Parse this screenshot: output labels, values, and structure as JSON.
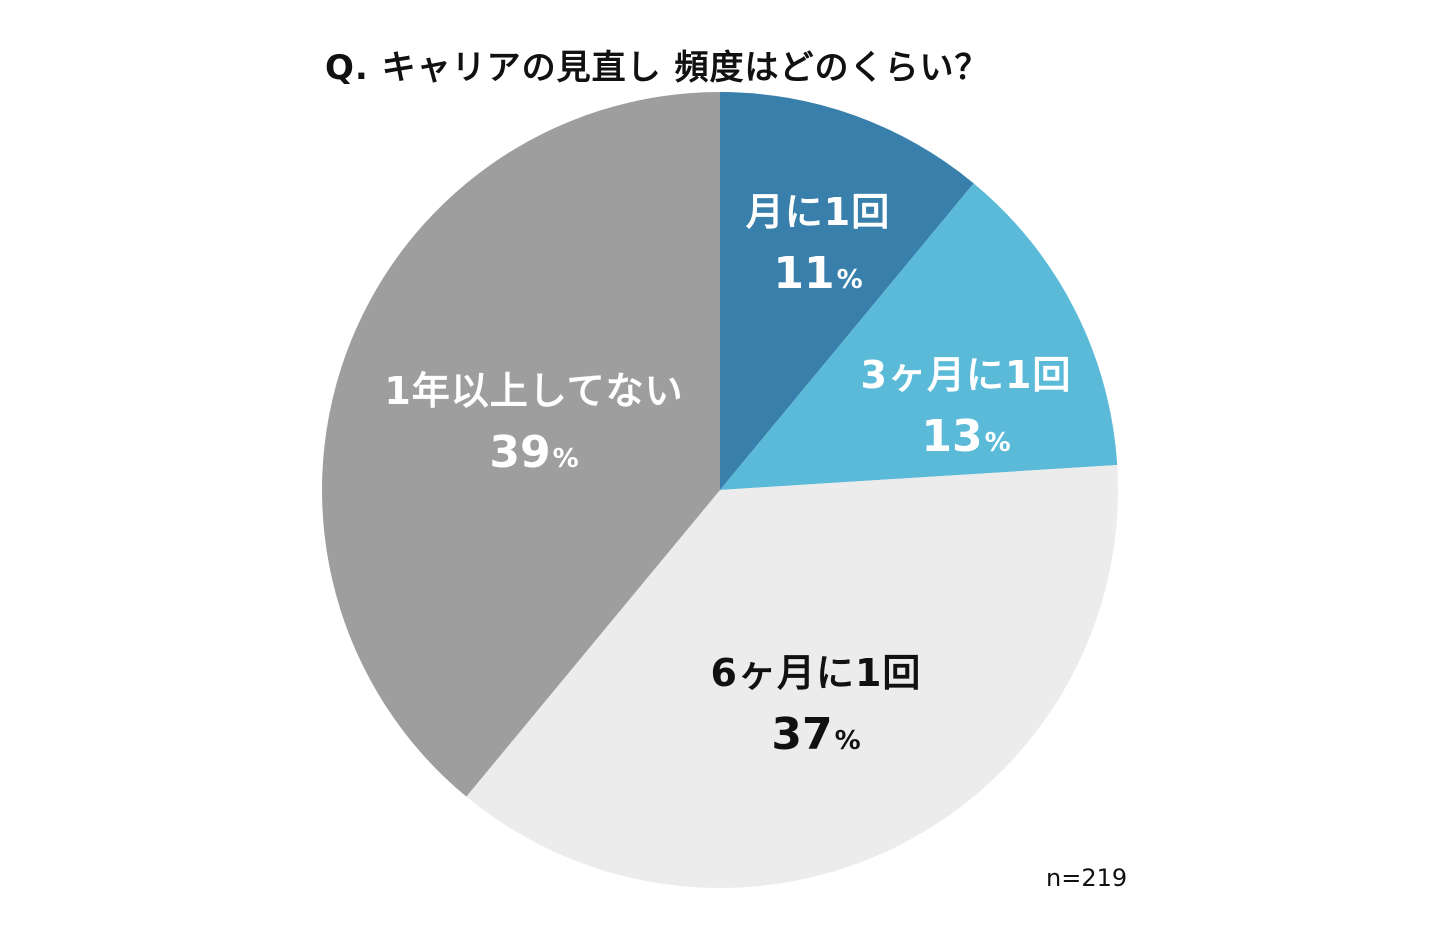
{
  "chart_data": {
    "type": "pie",
    "title": "Q. キャリアの見直し 頻度はどのくらい？",
    "sample_size": "n=219",
    "unit": "%",
    "start": "12 o'clock",
    "direction": "clockwise",
    "slices": [
      {
        "label": "月に1回",
        "value": 11,
        "color": "#387fab",
        "text_color": "#ffffff"
      },
      {
        "label": "3ヶ月に1回",
        "value": 13,
        "color": "#5bbad8",
        "text_color": "#ffffff"
      },
      {
        "label": "6ヶ月に1回",
        "value": 37,
        "color": "#ececec",
        "text_color": "#111111"
      },
      {
        "label": "1年以上してない",
        "value": 39,
        "color": "#9e9e9e",
        "text_color": "#ffffff"
      }
    ]
  }
}
